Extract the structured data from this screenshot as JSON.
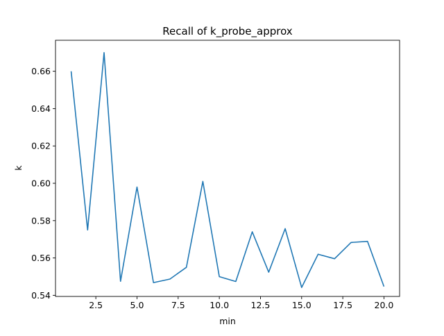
{
  "chart_data": {
    "type": "line",
    "title": "Recall of k_probe_approx",
    "xlabel": "min",
    "ylabel": "k",
    "xlim": [
      0.05,
      20.95
    ],
    "ylim": [
      0.5394,
      0.6766
    ],
    "xticks": [
      2.5,
      5.0,
      7.5,
      10.0,
      12.5,
      15.0,
      17.5,
      20.0
    ],
    "xtick_labels": [
      "2.5",
      "5.0",
      "7.5",
      "10.0",
      "12.5",
      "15.0",
      "17.5",
      "20.0"
    ],
    "yticks": [
      0.54,
      0.56,
      0.58,
      0.6,
      0.62,
      0.64,
      0.66
    ],
    "ytick_labels": [
      "0.54",
      "0.56",
      "0.58",
      "0.60",
      "0.62",
      "0.64",
      "0.66"
    ],
    "grid": false,
    "legend": "none",
    "line_color": "#1f77b4",
    "series": [
      {
        "x": [
          1,
          2,
          3,
          4,
          5,
          6,
          7,
          8,
          9,
          10,
          11,
          12,
          13,
          14,
          15,
          16,
          17,
          18,
          19,
          20
        ],
        "values": [
          0.66,
          0.575,
          0.67,
          0.5475,
          0.598,
          0.5468,
          0.5487,
          0.555,
          0.601,
          0.55,
          0.5474,
          0.574,
          0.5524,
          0.5757,
          0.5442,
          0.562,
          0.5596,
          0.5683,
          0.5689,
          0.5447
        ]
      }
    ]
  }
}
